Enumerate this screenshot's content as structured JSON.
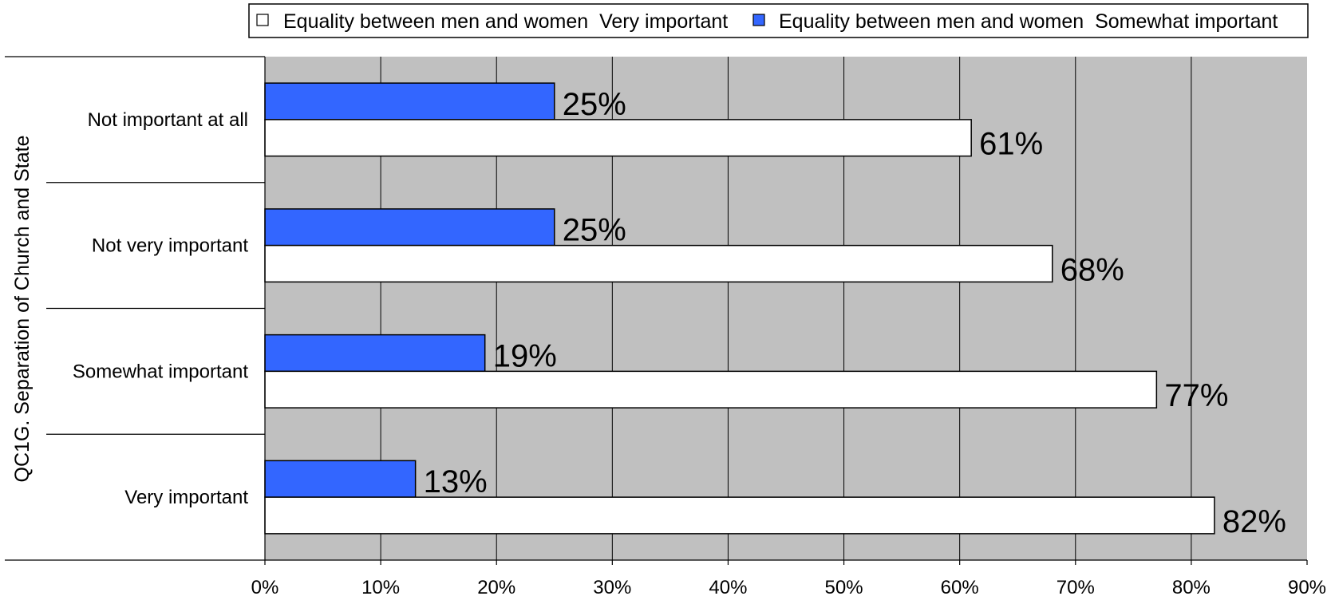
{
  "chart_data": {
    "type": "bar",
    "orientation": "horizontal",
    "ylabel": "QC1G. Separation of Church and State",
    "categories": [
      "Not important at all",
      "Not very important",
      "Somewhat important",
      "Very important"
    ],
    "series": [
      {
        "name": "Equality between men and women  Very important",
        "color": "#ffffff",
        "values": [
          61,
          68,
          77,
          82
        ],
        "labels": [
          "61%",
          "68%",
          "77%",
          "82%"
        ]
      },
      {
        "name": "Equality between men and women  Somewhat important",
        "color": "#3366ff",
        "values": [
          25,
          25,
          19,
          13
        ],
        "labels": [
          "25%",
          "25%",
          "19%",
          "13%"
        ]
      }
    ],
    "xlim": [
      0,
      90
    ],
    "x_ticks": [
      "0%",
      "10%",
      "20%",
      "30%",
      "40%",
      "50%",
      "60%",
      "70%",
      "80%",
      "90%"
    ],
    "grid": true,
    "plot_background": "#c0c0c0",
    "legend_position": "top-right"
  }
}
